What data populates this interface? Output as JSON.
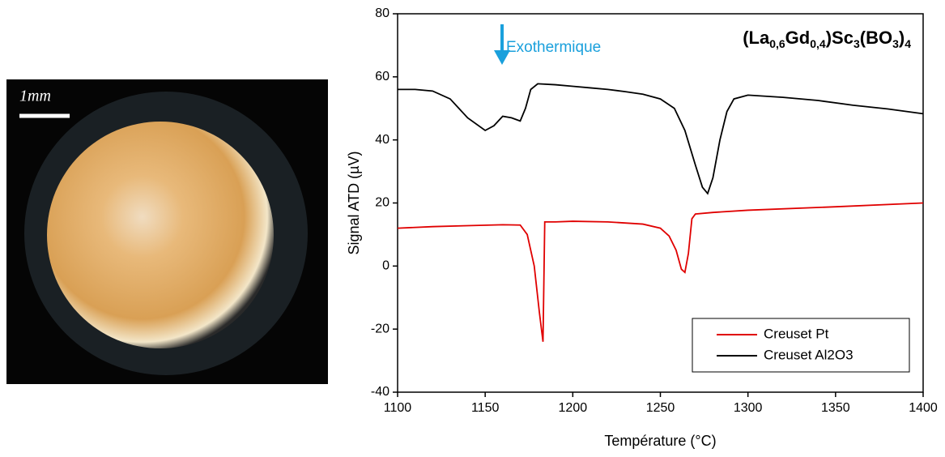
{
  "photo": {
    "scale_label": "1mm"
  },
  "chart_data": {
    "type": "line",
    "title": [
      "(La",
      "0,6",
      "Gd",
      "0,4",
      ")Sc",
      "3",
      "(BO",
      "3",
      ")",
      "4"
    ],
    "annotation": "Exothermique",
    "annotation_color": "#1aa0dc",
    "xlabel": "Température (°C)",
    "ylabel": "Signal ATD (µV)",
    "xlim": [
      1100,
      1400
    ],
    "xticks": [
      1100,
      1150,
      1200,
      1250,
      1300,
      1350,
      1400
    ],
    "ylim": [
      -40,
      80
    ],
    "yticks": [
      -40,
      -20,
      0,
      20,
      40,
      60,
      80
    ],
    "legend": "lower right",
    "series": [
      {
        "name": "Creuset Pt",
        "color": "#e00000",
        "x": [
          1100,
          1120,
          1140,
          1160,
          1170,
          1174,
          1178,
          1181,
          1183,
          1184,
          1190,
          1200,
          1220,
          1240,
          1250,
          1255,
          1259,
          1262,
          1264,
          1266,
          1268,
          1270,
          1280,
          1300,
          1350,
          1400
        ],
        "values": [
          12,
          12.5,
          12.8,
          13.1,
          13,
          10,
          0,
          -15,
          -24,
          14,
          14,
          14.2,
          14,
          13.3,
          12,
          9.5,
          5,
          -1,
          -2,
          4,
          15,
          16.5,
          17,
          17.7,
          18.8,
          20
        ]
      },
      {
        "name": "Creuset Al2O3",
        "color": "#000000",
        "x": [
          1100,
          1110,
          1120,
          1130,
          1140,
          1150,
          1155,
          1160,
          1165,
          1170,
          1173,
          1176,
          1180,
          1190,
          1200,
          1210,
          1220,
          1230,
          1240,
          1250,
          1258,
          1264,
          1270,
          1274,
          1277,
          1280,
          1284,
          1288,
          1292,
          1300,
          1320,
          1340,
          1360,
          1380,
          1400
        ],
        "values": [
          56,
          56,
          55.5,
          53,
          47,
          43,
          44.5,
          47.5,
          47,
          46,
          50,
          56,
          57.8,
          57.5,
          57,
          56.5,
          56,
          55.3,
          54.5,
          53,
          50,
          43,
          32,
          25,
          23,
          28,
          40,
          49,
          53,
          54.2,
          53.5,
          52.5,
          51,
          49.8,
          48.3
        ]
      }
    ]
  }
}
